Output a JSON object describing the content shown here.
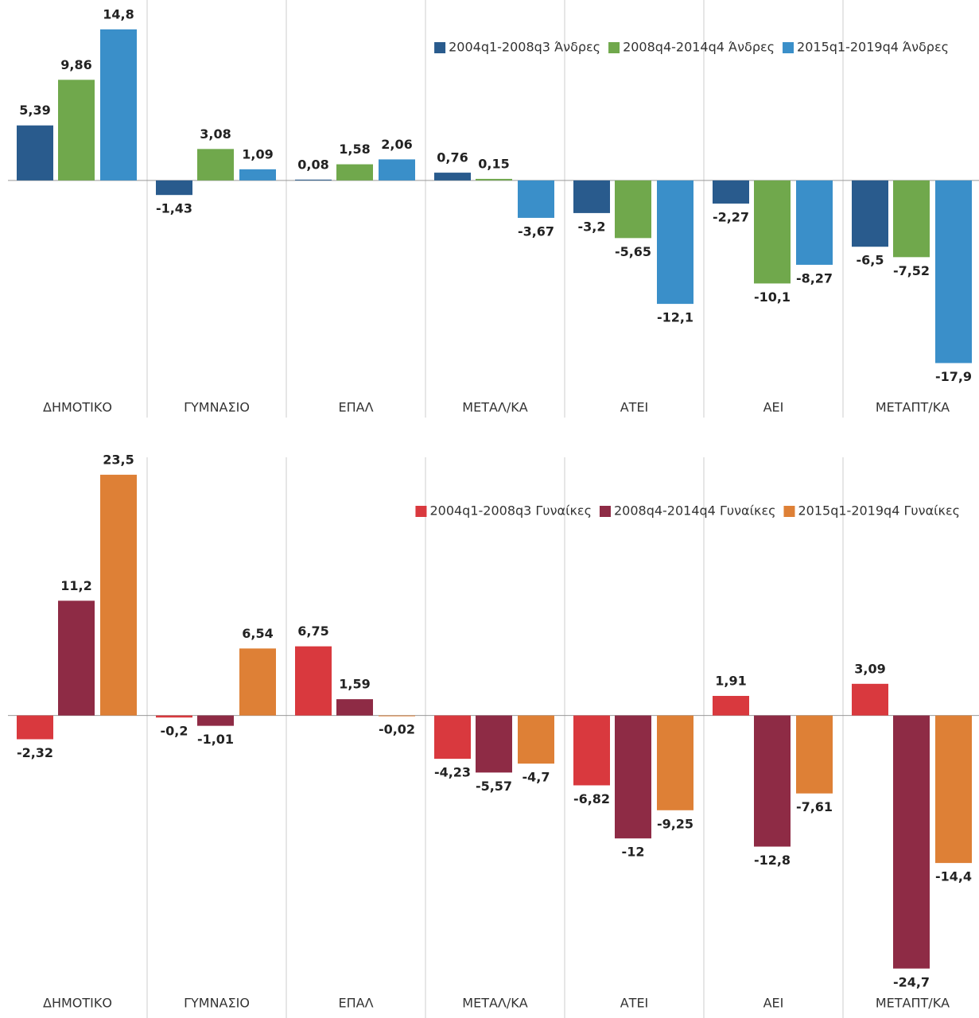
{
  "chart_data": [
    {
      "type": "bar",
      "categories": [
        "ΔΗΜΟΤΙΚΟ",
        "ΓΥΜΝΑΣΙΟ",
        "ΕΠΑΛ",
        "ΜΕΤΑΛ/ΚΑ",
        "ΑΤΕΙ",
        "ΑΕΙ",
        "ΜΕΤΑΠΤ/ΚΑ"
      ],
      "series": [
        {
          "name": "2004q1-2008q3 Άνδρες",
          "color": "#295b8d",
          "values": [
            5.39,
            -1.43,
            0.08,
            0.76,
            -3.2,
            -2.27,
            -6.5
          ],
          "value_labels": [
            "5,39",
            "-1,43",
            "0,08",
            "0,76",
            "-3,2",
            "-2,27",
            "-6,5"
          ]
        },
        {
          "name": "2008q4-2014q4 Άνδρες",
          "color": "#70a84c",
          "values": [
            9.86,
            3.08,
            1.58,
            0.15,
            -5.65,
            -10.1,
            -7.52
          ],
          "value_labels": [
            "9,86",
            "3,08",
            "1,58",
            "0,15",
            "-5,65",
            "-10,1",
            "-7,52"
          ]
        },
        {
          "name": "2015q1-2019q4 Άνδρες",
          "color": "#3a8fc9",
          "values": [
            14.8,
            1.09,
            2.06,
            -3.67,
            -12.1,
            -8.27,
            -17.9
          ],
          "value_labels": [
            "14,8",
            "1,09",
            "2,06",
            "-3,67",
            "-12,1",
            "-8,27",
            "-17,9"
          ]
        }
      ],
      "ylim": [
        -20.9,
        17.68
      ],
      "legend": "top-right"
    },
    {
      "type": "bar",
      "categories": [
        "ΔΗΜΟΤΙΚΟ",
        "ΓΥΜΝΑΣΙΟ",
        "ΕΠΑΛ",
        "ΜΕΤΑΛ/ΚΑ",
        "ΑΤΕΙ",
        "ΑΕΙ",
        "ΜΕΤΑΠΤ/ΚΑ"
      ],
      "series": [
        {
          "name": "2004q1-2008q3 Γυναίκες",
          "color": "#d9393e",
          "values": [
            -2.32,
            -0.2,
            6.75,
            -4.23,
            -6.82,
            1.91,
            3.09
          ],
          "value_labels": [
            "-2,32",
            "-0,2",
            "6,75",
            "-4,23",
            "-6,82",
            "1,91",
            "3,09"
          ]
        },
        {
          "name": "2008q4-2014q4 Γυναίκες",
          "color": "#8e2b45",
          "values": [
            11.2,
            -1.01,
            1.59,
            -5.57,
            -12,
            -12.8,
            -24.7
          ],
          "value_labels": [
            "11,2",
            "-1,01",
            "1,59",
            "-5,57",
            "-12",
            "-12,8",
            "-24,7"
          ]
        },
        {
          "name": "2015q1-2019q4 Γυναίκες",
          "color": "#de8036",
          "values": [
            23.5,
            6.54,
            -0.02,
            -4.7,
            -9.25,
            -7.61,
            -14.4
          ],
          "value_labels": [
            "23,5",
            "6,54",
            "-0,02",
            "-4,7",
            "-9,25",
            "-7,61",
            "-14,4"
          ]
        }
      ],
      "ylim": [
        -27.2,
        25.2
      ],
      "legend": "top-right"
    }
  ]
}
